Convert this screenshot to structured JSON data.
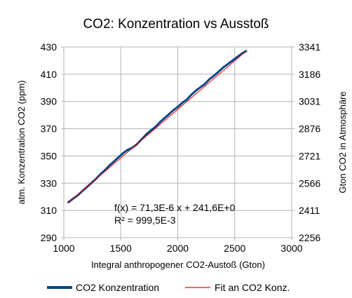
{
  "chart_data": {
    "type": "line",
    "title": "CO2: Konzentration vs Ausstoß",
    "xlabel": "Integral anthropogener CO2-Austoß (Gton)",
    "ylabel": "atm. Konzentration CO2 (ppm)",
    "y2label": "Gton CO2 in Atmosphäre",
    "xlim": [
      1000,
      3000
    ],
    "ylim": [
      290,
      430
    ],
    "y2lim": [
      2256,
      3341
    ],
    "x_ticks": [
      "1000",
      "1500",
      "2000",
      "2500",
      "3000"
    ],
    "y_ticks": [
      "290",
      "310",
      "330",
      "350",
      "370",
      "390",
      "410",
      "430"
    ],
    "y2_ticks": [
      "2256",
      "2411",
      "2566",
      "2721",
      "2876",
      "3031",
      "3186",
      "3341"
    ],
    "grid": true,
    "legend_position": "bottom",
    "annotation": {
      "line1": "f(x) = 71,3E-6 x + 241,6E+0",
      "line2": "R² = 999,5E-3"
    },
    "series": [
      {
        "name": "CO2 Konzentration",
        "color": "#004586",
        "x": [
          1040,
          1080,
          1120,
          1160,
          1200,
          1240,
          1280,
          1320,
          1360,
          1400,
          1440,
          1480,
          1520,
          1560,
          1600,
          1640,
          1680,
          1720,
          1760,
          1800,
          1840,
          1880,
          1920,
          1960,
          2000,
          2040,
          2080,
          2120,
          2160,
          2200,
          2240,
          2280,
          2320,
          2360,
          2400,
          2440,
          2480,
          2520,
          2560,
          2600
        ],
        "y": [
          316.0,
          318.5,
          321.0,
          324.0,
          327.0,
          330.0,
          333.0,
          336.5,
          339.5,
          343.0,
          346.0,
          349.0,
          352.0,
          354.5,
          356.0,
          358.5,
          362.0,
          365.5,
          368.5,
          371.0,
          374.5,
          377.5,
          380.5,
          383.5,
          386.0,
          389.0,
          391.5,
          395.0,
          398.0,
          400.5,
          403.0,
          406.5,
          409.0,
          412.0,
          415.0,
          417.5,
          420.0,
          422.5,
          425.0,
          427.0
        ]
      },
      {
        "name": "Fit an CO2 Konz.",
        "color": "#ff0000",
        "fit": {
          "slope": 0.0713,
          "intercept": 241.6,
          "x0": 1040,
          "x1": 2600
        }
      }
    ]
  }
}
